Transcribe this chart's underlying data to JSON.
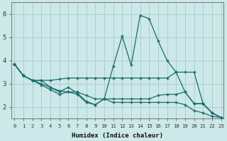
{
  "bg_color": "#cce8e8",
  "grid_color": "#aacfcf",
  "line_color": "#1a6b6b",
  "xlabel": "Humidex (Indice chaleur)",
  "xlim": [
    -0.3,
    23.3
  ],
  "ylim": [
    1.5,
    6.5
  ],
  "yticks": [
    2,
    3,
    4,
    5,
    6
  ],
  "xticks": [
    0,
    1,
    2,
    3,
    4,
    5,
    6,
    7,
    8,
    9,
    10,
    11,
    12,
    13,
    14,
    15,
    16,
    17,
    18,
    19,
    20,
    21,
    22,
    23
  ],
  "series": [
    {
      "x": [
        0,
        1,
        2,
        3,
        4,
        5,
        6,
        7,
        8,
        9,
        10,
        11,
        12,
        13,
        14,
        15,
        16,
        17,
        18,
        19,
        20,
        21,
        22,
        23
      ],
      "y": [
        3.85,
        3.35,
        3.15,
        3.15,
        2.85,
        2.65,
        2.85,
        2.6,
        2.25,
        2.1,
        2.35,
        3.75,
        5.05,
        3.8,
        5.95,
        5.8,
        4.85,
        4.0,
        3.5,
        2.65,
        2.15,
        2.15,
        1.75,
        1.55
      ]
    },
    {
      "x": [
        0,
        1,
        2,
        3,
        4,
        5,
        6,
        7,
        8,
        9,
        10,
        11,
        12,
        13,
        14,
        15,
        16,
        17,
        18,
        19,
        20,
        21,
        22,
        23
      ],
      "y": [
        3.85,
        3.35,
        3.15,
        3.15,
        3.15,
        3.2,
        3.25,
        3.25,
        3.25,
        3.25,
        3.25,
        3.25,
        3.25,
        3.25,
        3.25,
        3.25,
        3.25,
        3.25,
        3.5,
        3.5,
        3.5,
        2.15,
        1.75,
        1.55
      ]
    },
    {
      "x": [
        0,
        1,
        2,
        3,
        4,
        5,
        6,
        7,
        8,
        9,
        10,
        11,
        12,
        13,
        14,
        15,
        16,
        17,
        18,
        19,
        20,
        21,
        22,
        23
      ],
      "y": [
        3.85,
        3.35,
        3.15,
        3.0,
        2.85,
        2.7,
        2.65,
        2.65,
        2.5,
        2.35,
        2.35,
        2.35,
        2.35,
        2.35,
        2.35,
        2.35,
        2.5,
        2.55,
        2.55,
        2.65,
        2.15,
        2.15,
        1.75,
        1.55
      ]
    },
    {
      "x": [
        0,
        1,
        2,
        3,
        4,
        5,
        6,
        7,
        8,
        9,
        10,
        11,
        12,
        13,
        14,
        15,
        16,
        17,
        18,
        19,
        20,
        21,
        22,
        23
      ],
      "y": [
        3.85,
        3.35,
        3.15,
        2.95,
        2.75,
        2.55,
        2.65,
        2.55,
        2.2,
        2.1,
        2.35,
        2.2,
        2.2,
        2.2,
        2.2,
        2.2,
        2.2,
        2.2,
        2.2,
        2.1,
        1.85,
        1.75,
        1.6,
        1.55
      ]
    }
  ]
}
